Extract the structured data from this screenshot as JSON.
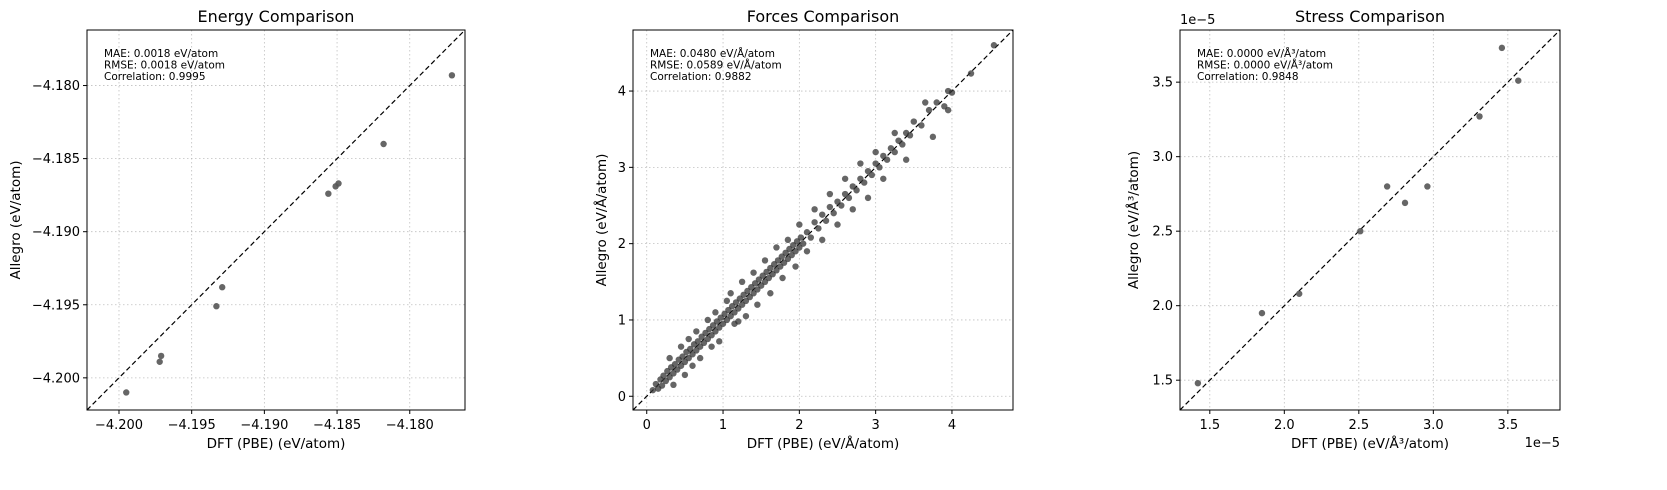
{
  "chart_data": [
    {
      "type": "scatter",
      "title": "Energy Comparison",
      "xlabel": "DFT (PBE) (eV/atom)",
      "ylabel": "Allegro (eV/atom)",
      "xlim": [
        -4.2022,
        -4.1762
      ],
      "ylim": [
        -4.2022,
        -4.1762
      ],
      "xticks": [
        -4.2,
        -4.195,
        -4.19,
        -4.185,
        -4.18
      ],
      "xtick_labels": [
        "−4.200",
        "−4.195",
        "−4.190",
        "−4.185",
        "−4.180"
      ],
      "yticks": [
        -4.2,
        -4.195,
        -4.19,
        -4.185,
        -4.18
      ],
      "ytick_labels": [
        "−4.200",
        "−4.195",
        "−4.190",
        "−4.185",
        "−4.180"
      ],
      "offset_x": "",
      "offset_y": "",
      "grid": true,
      "reference_line": "y = x",
      "point_color": "#555555",
      "stats": [
        "MAE: 0.0018 eV/atom",
        "RMSE: 0.0018 eV/atom",
        "Correlation: 0.9995"
      ],
      "points": [
        [
          -4.1995,
          -4.201
        ],
        [
          -4.1972,
          -4.1989
        ],
        [
          -4.1971,
          -4.1985
        ],
        [
          -4.1933,
          -4.1951
        ],
        [
          -4.1929,
          -4.1938
        ],
        [
          -4.1856,
          -4.1874
        ],
        [
          -4.1851,
          -4.1869
        ],
        [
          -4.1849,
          -4.1867
        ],
        [
          -4.1818,
          -4.184
        ],
        [
          -4.1771,
          -4.1793
        ]
      ]
    },
    {
      "type": "scatter",
      "title": "Forces Comparison",
      "xlabel": "DFT (PBE) (eV/Å/atom)",
      "ylabel": "Allegro (eV/Å/atom)",
      "xlim": [
        -0.18,
        4.8
      ],
      "ylim": [
        -0.18,
        4.8
      ],
      "xticks": [
        0,
        1,
        2,
        3,
        4
      ],
      "xtick_labels": [
        "0",
        "1",
        "2",
        "3",
        "4"
      ],
      "yticks": [
        0,
        1,
        2,
        3,
        4
      ],
      "ytick_labels": [
        "0",
        "1",
        "2",
        "3",
        "4"
      ],
      "offset_x": "",
      "offset_y": "",
      "grid": true,
      "reference_line": "y = x",
      "point_color": "#333333",
      "stats": [
        "MAE: 0.0480 eV/Å/atom",
        "RMSE: 0.0589 eV/Å/atom",
        "Correlation: 0.9882"
      ],
      "points": [
        [
          0.08,
          0.08
        ],
        [
          0.12,
          0.16
        ],
        [
          0.15,
          0.1
        ],
        [
          0.18,
          0.22
        ],
        [
          0.2,
          0.14
        ],
        [
          0.22,
          0.27
        ],
        [
          0.25,
          0.2
        ],
        [
          0.27,
          0.33
        ],
        [
          0.3,
          0.25
        ],
        [
          0.32,
          0.38
        ],
        [
          0.35,
          0.3
        ],
        [
          0.37,
          0.42
        ],
        [
          0.4,
          0.35
        ],
        [
          0.42,
          0.48
        ],
        [
          0.45,
          0.4
        ],
        [
          0.47,
          0.52
        ],
        [
          0.5,
          0.45
        ],
        [
          0.52,
          0.58
        ],
        [
          0.55,
          0.5
        ],
        [
          0.57,
          0.62
        ],
        [
          0.6,
          0.55
        ],
        [
          0.62,
          0.68
        ],
        [
          0.65,
          0.6
        ],
        [
          0.67,
          0.72
        ],
        [
          0.7,
          0.65
        ],
        [
          0.72,
          0.78
        ],
        [
          0.75,
          0.7
        ],
        [
          0.77,
          0.83
        ],
        [
          0.8,
          0.75
        ],
        [
          0.82,
          0.88
        ],
        [
          0.85,
          0.8
        ],
        [
          0.87,
          0.93
        ],
        [
          0.9,
          0.85
        ],
        [
          0.92,
          0.98
        ],
        [
          0.95,
          0.9
        ],
        [
          0.97,
          1.03
        ],
        [
          1.0,
          0.95
        ],
        [
          1.02,
          1.08
        ],
        [
          1.05,
          1.0
        ],
        [
          1.07,
          1.13
        ],
        [
          1.1,
          1.05
        ],
        [
          1.12,
          1.18
        ],
        [
          1.15,
          1.1
        ],
        [
          1.17,
          1.23
        ],
        [
          1.2,
          1.15
        ],
        [
          1.22,
          1.28
        ],
        [
          1.25,
          1.2
        ],
        [
          1.27,
          1.33
        ],
        [
          1.3,
          1.25
        ],
        [
          1.32,
          1.38
        ],
        [
          1.35,
          1.3
        ],
        [
          1.37,
          1.43
        ],
        [
          1.4,
          1.35
        ],
        [
          1.42,
          1.48
        ],
        [
          1.45,
          1.4
        ],
        [
          1.47,
          1.53
        ],
        [
          1.5,
          1.45
        ],
        [
          1.52,
          1.58
        ],
        [
          1.55,
          1.5
        ],
        [
          1.57,
          1.63
        ],
        [
          1.6,
          1.55
        ],
        [
          1.62,
          1.68
        ],
        [
          1.65,
          1.6
        ],
        [
          1.67,
          1.73
        ],
        [
          1.7,
          1.65
        ],
        [
          1.72,
          1.78
        ],
        [
          1.75,
          1.7
        ],
        [
          1.77,
          1.83
        ],
        [
          1.8,
          1.75
        ],
        [
          1.82,
          1.88
        ],
        [
          1.85,
          1.8
        ],
        [
          1.87,
          1.93
        ],
        [
          1.9,
          1.85
        ],
        [
          1.92,
          1.98
        ],
        [
          1.95,
          1.9
        ],
        [
          1.97,
          2.03
        ],
        [
          2.0,
          1.95
        ],
        [
          2.02,
          2.08
        ],
        [
          2.05,
          2.0
        ],
        [
          2.1,
          2.15
        ],
        [
          2.15,
          2.08
        ],
        [
          2.2,
          2.28
        ],
        [
          2.25,
          2.2
        ],
        [
          2.3,
          2.38
        ],
        [
          2.35,
          2.3
        ],
        [
          2.4,
          2.48
        ],
        [
          2.45,
          2.4
        ],
        [
          2.5,
          2.55
        ],
        [
          2.55,
          2.5
        ],
        [
          2.6,
          2.65
        ],
        [
          2.65,
          2.6
        ],
        [
          2.7,
          2.75
        ],
        [
          2.75,
          2.7
        ],
        [
          2.8,
          2.85
        ],
        [
          2.85,
          2.8
        ],
        [
          2.9,
          2.95
        ],
        [
          2.95,
          2.9
        ],
        [
          3.0,
          3.05
        ],
        [
          3.05,
          3.0
        ],
        [
          3.1,
          3.15
        ],
        [
          3.15,
          3.1
        ],
        [
          3.2,
          3.25
        ],
        [
          3.25,
          3.2
        ],
        [
          3.3,
          3.35
        ],
        [
          3.35,
          3.3
        ],
        [
          3.4,
          3.45
        ],
        [
          3.45,
          3.42
        ],
        [
          3.5,
          3.6
        ],
        [
          3.6,
          3.55
        ],
        [
          3.7,
          3.75
        ],
        [
          3.8,
          3.85
        ],
        [
          3.9,
          3.8
        ],
        [
          3.95,
          4.0
        ],
        [
          4.0,
          3.98
        ],
        [
          4.25,
          4.23
        ],
        [
          4.55,
          4.6
        ],
        [
          0.55,
          0.75
        ],
        [
          0.6,
          0.4
        ],
        [
          0.8,
          1.0
        ],
        [
          0.85,
          0.65
        ],
        [
          1.1,
          1.35
        ],
        [
          1.15,
          0.95
        ],
        [
          1.25,
          1.5
        ],
        [
          1.3,
          1.05
        ],
        [
          1.4,
          1.62
        ],
        [
          1.45,
          1.2
        ],
        [
          1.55,
          1.78
        ],
        [
          1.62,
          1.35
        ],
        [
          1.7,
          1.95
        ],
        [
          1.78,
          1.55
        ],
        [
          1.85,
          2.05
        ],
        [
          1.95,
          1.7
        ],
        [
          2.0,
          2.25
        ],
        [
          2.1,
          1.9
        ],
        [
          2.2,
          2.45
        ],
        [
          2.3,
          2.05
        ],
        [
          2.4,
          2.65
        ],
        [
          2.5,
          2.25
        ],
        [
          2.6,
          2.85
        ],
        [
          2.7,
          2.45
        ],
        [
          2.8,
          3.05
        ],
        [
          2.9,
          2.6
        ],
        [
          3.0,
          3.2
        ],
        [
          3.1,
          2.85
        ],
        [
          3.25,
          3.45
        ],
        [
          3.4,
          3.1
        ],
        [
          3.65,
          3.85
        ],
        [
          3.75,
          3.4
        ],
        [
          3.95,
          3.75
        ],
        [
          0.3,
          0.5
        ],
        [
          0.35,
          0.15
        ],
        [
          0.45,
          0.65
        ],
        [
          0.5,
          0.28
        ],
        [
          0.65,
          0.85
        ],
        [
          0.7,
          0.5
        ],
        [
          0.9,
          1.1
        ],
        [
          0.95,
          0.72
        ],
        [
          1.05,
          1.25
        ],
        [
          1.2,
          0.98
        ]
      ]
    },
    {
      "type": "scatter",
      "title": "Stress Comparison",
      "xlabel": "DFT (PBE) (eV/Å³/atom)",
      "ylabel": "Allegro (eV/Å³/atom)",
      "xlim": [
        1.3e-05,
        3.85e-05
      ],
      "ylim": [
        1.3e-05,
        3.85e-05
      ],
      "xticks": [
        1.5e-05,
        2e-05,
        2.5e-05,
        3e-05,
        3.5e-05
      ],
      "xtick_labels": [
        "1.5",
        "2.0",
        "2.5",
        "3.0",
        "3.5"
      ],
      "yticks": [
        1.5e-05,
        2e-05,
        2.5e-05,
        3e-05,
        3.5e-05
      ],
      "ytick_labels": [
        "1.5",
        "2.0",
        "2.5",
        "3.0",
        "3.5"
      ],
      "offset_x": "1e−5",
      "offset_y": "1e−5",
      "grid": true,
      "reference_line": "y = x",
      "point_color": "#555555",
      "stats": [
        "MAE: 0.0000 eV/Å³/atom",
        "RMSE: 0.0000 eV/Å³/atom",
        "Correlation: 0.9848"
      ],
      "points": [
        [
          1.42e-05,
          1.48e-05
        ],
        [
          1.85e-05,
          1.95e-05
        ],
        [
          2.1e-05,
          2.08e-05
        ],
        [
          2.51e-05,
          2.5e-05
        ],
        [
          2.69e-05,
          2.8e-05
        ],
        [
          2.81e-05,
          2.69e-05
        ],
        [
          2.96e-05,
          2.8e-05
        ],
        [
          3.31e-05,
          3.27e-05
        ],
        [
          3.46e-05,
          3.73e-05
        ],
        [
          3.57e-05,
          3.51e-05
        ]
      ]
    }
  ]
}
